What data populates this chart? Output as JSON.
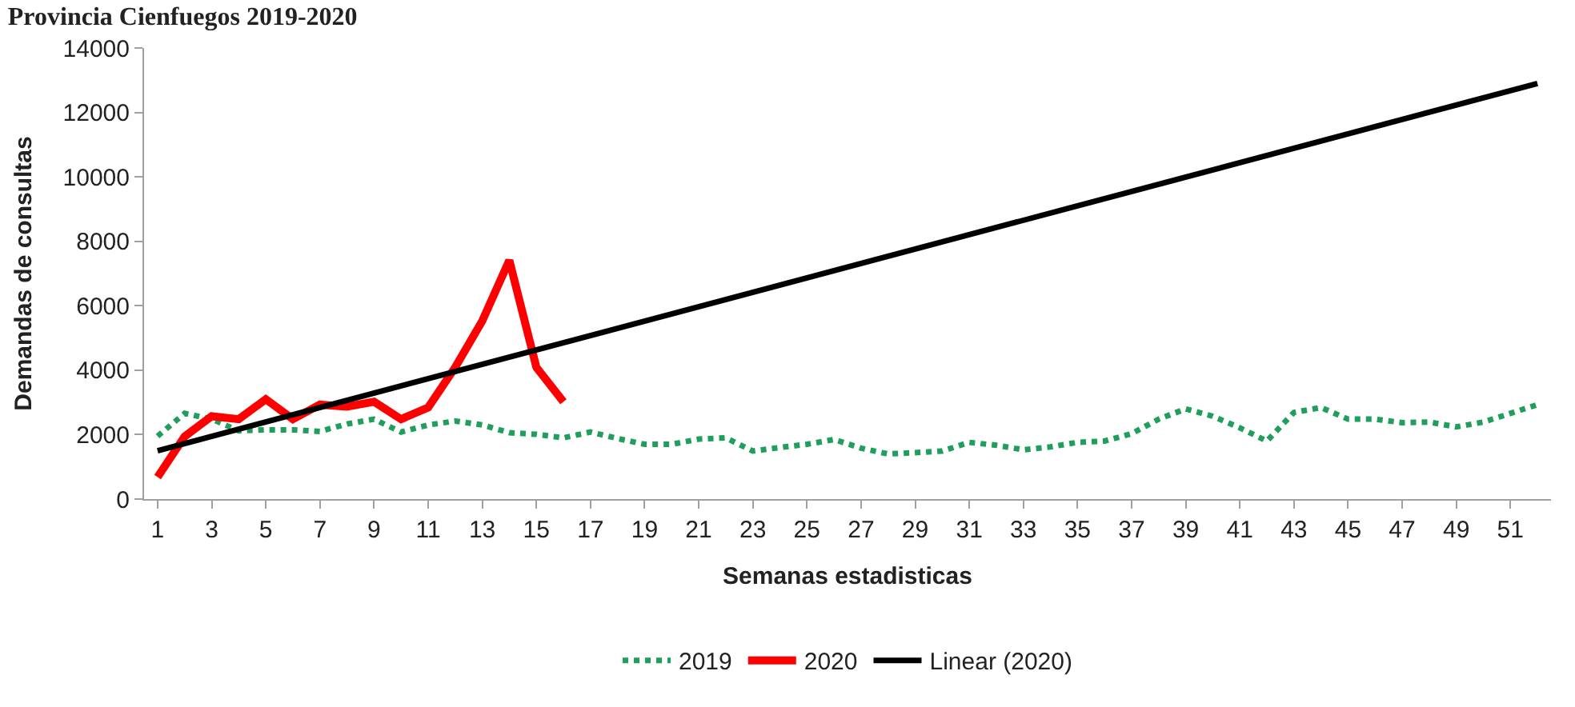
{
  "chart_data": {
    "type": "line",
    "title": "Provincia Cienfuegos 2019-2020",
    "xlabel": "Semanas estadisticas",
    "ylabel": "Demandas de consultas",
    "x": [
      1,
      2,
      3,
      4,
      5,
      6,
      7,
      8,
      9,
      10,
      11,
      12,
      13,
      14,
      15,
      16,
      17,
      18,
      19,
      20,
      21,
      22,
      23,
      24,
      25,
      26,
      27,
      28,
      29,
      30,
      31,
      32,
      33,
      34,
      35,
      36,
      37,
      38,
      39,
      40,
      41,
      42,
      43,
      44,
      45,
      46,
      47,
      48,
      49,
      50,
      51,
      52
    ],
    "xlim": [
      0.5,
      52.5
    ],
    "xticks": [
      1,
      3,
      5,
      7,
      9,
      11,
      13,
      15,
      17,
      19,
      21,
      23,
      25,
      27,
      29,
      31,
      33,
      35,
      37,
      39,
      41,
      43,
      45,
      47,
      49,
      51
    ],
    "ylim": [
      0,
      14000
    ],
    "yticks": [
      0,
      2000,
      4000,
      6000,
      8000,
      10000,
      12000,
      14000
    ],
    "legend": "bottom",
    "marker": "none",
    "series": [
      {
        "name": "2019",
        "color": "#1f9e5c",
        "line_style": "dotted",
        "values": [
          1950,
          2660,
          2480,
          2120,
          2150,
          2150,
          2100,
          2330,
          2480,
          2080,
          2300,
          2420,
          2300,
          2060,
          2010,
          1900,
          2080,
          1880,
          1700,
          1700,
          1860,
          1900,
          1490,
          1600,
          1700,
          1850,
          1580,
          1400,
          1440,
          1490,
          1760,
          1670,
          1530,
          1620,
          1760,
          1800,
          2030,
          2480,
          2800,
          2570,
          2210,
          1800,
          2690,
          2840,
          2480,
          2480,
          2370,
          2390,
          2240,
          2390,
          2660,
          2930
        ]
      },
      {
        "name": "2020",
        "color": "#ff0000",
        "line_style": "solid",
        "values": [
          680,
          1940,
          2570,
          2480,
          3100,
          2480,
          2930,
          2870,
          3020,
          2480,
          2840,
          4090,
          5530,
          7410,
          4090,
          3020,
          null,
          null,
          null,
          null,
          null,
          null,
          null,
          null,
          null,
          null,
          null,
          null,
          null,
          null,
          null,
          null,
          null,
          null,
          null,
          null,
          null,
          null,
          null,
          null,
          null,
          null,
          null,
          null,
          null,
          null,
          null,
          null,
          null,
          null,
          null,
          null
        ]
      },
      {
        "name": "Linear (2020)",
        "color": "#000000",
        "line_style": "solid",
        "x": [
          1,
          52
        ],
        "values": [
          1500,
          12900
        ]
      }
    ]
  }
}
